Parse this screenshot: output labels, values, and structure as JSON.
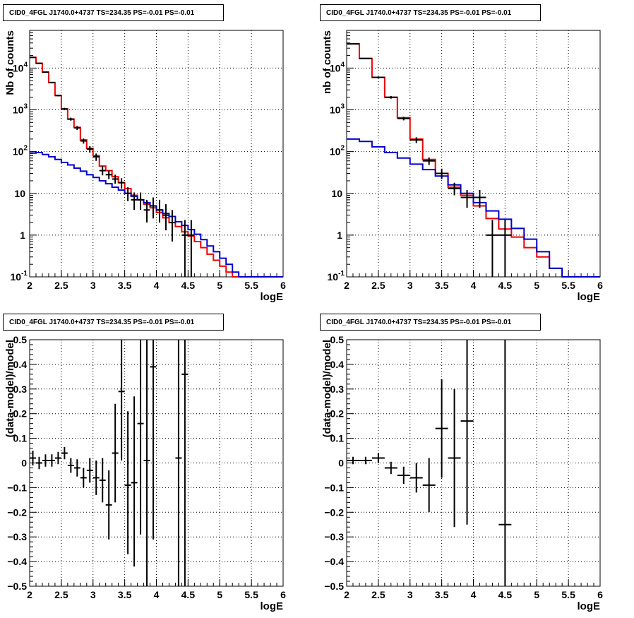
{
  "chart_data": [
    {
      "type": "histogram-line",
      "title": "CID0_4FGL J1740.0+4737 TS=234.35 PS=-0.01 PS=-0.01",
      "xlabel": "logE",
      "ylabel": "Nb of counts",
      "xlim": [
        2,
        6
      ],
      "ylim": [
        0.1,
        80000
      ],
      "yscale": "log",
      "grid": true,
      "x_ticks": [
        "2",
        "2.5",
        "3",
        "3.5",
        "4",
        "4.5",
        "5",
        "5.5",
        "6"
      ],
      "y_ticks": [
        "10^-1",
        "1",
        "10",
        "10^2",
        "10^3",
        "10^4"
      ],
      "bin_edges": [
        2.0,
        2.1,
        2.2,
        2.3,
        2.4,
        2.5,
        2.6,
        2.7,
        2.8,
        2.9,
        3.0,
        3.1,
        3.2,
        3.3,
        3.4,
        3.5,
        3.6,
        3.7,
        3.8,
        3.9,
        4.0,
        4.1,
        4.2,
        4.3,
        4.4,
        4.5,
        4.6,
        4.7,
        4.8,
        4.9,
        5.0,
        5.1,
        5.2,
        5.3,
        5.4,
        5.5,
        5.6,
        5.7,
        5.8,
        5.9,
        6.0
      ],
      "series": [
        {
          "color": "#ee0000",
          "values": [
            18000,
            13000,
            8000,
            4500,
            2200,
            1050,
            600,
            380,
            190,
            120,
            80,
            45,
            35,
            25,
            18,
            13,
            9,
            7,
            5.5,
            4.5,
            3.5,
            2.6,
            2.0,
            1.6,
            1.2,
            0.95,
            0.7,
            0.5,
            0.35,
            0.25,
            0.18,
            0.13,
            0.1,
            0.1,
            0.1,
            0.1,
            0.1,
            0.1,
            0.1,
            0.1
          ]
        },
        {
          "color": "#0000cc",
          "values": [
            92,
            95,
            85,
            75,
            65,
            55,
            48,
            40,
            34,
            28,
            24,
            20,
            17,
            14,
            12,
            10,
            8.5,
            7,
            6,
            5,
            4,
            3.3,
            2.8,
            2.1,
            1.7,
            1.35,
            1.05,
            0.78,
            0.55,
            0.4,
            0.28,
            0.2,
            0.13,
            0.1,
            0.1,
            0.1,
            0.1,
            0.1,
            0.1,
            0.1
          ]
        }
      ],
      "data_points": [
        {
          "x": 2.05,
          "y": 18000,
          "elo": 400,
          "ehi": 400
        },
        {
          "x": 2.15,
          "y": 13000,
          "elo": 300,
          "ehi": 300
        },
        {
          "x": 2.25,
          "y": 8000,
          "elo": 200,
          "ehi": 200
        },
        {
          "x": 2.35,
          "y": 4500,
          "elo": 150,
          "ehi": 150
        },
        {
          "x": 2.45,
          "y": 2200,
          "elo": 100,
          "ehi": 100
        },
        {
          "x": 2.55,
          "y": 1050,
          "elo": 70,
          "ehi": 70
        },
        {
          "x": 2.65,
          "y": 600,
          "elo": 50,
          "ehi": 50
        },
        {
          "x": 2.75,
          "y": 370,
          "elo": 40,
          "ehi": 40
        },
        {
          "x": 2.85,
          "y": 180,
          "elo": 25,
          "ehi": 25
        },
        {
          "x": 2.95,
          "y": 115,
          "elo": 20,
          "ehi": 20
        },
        {
          "x": 3.05,
          "y": 75,
          "elo": 15,
          "ehi": 15
        },
        {
          "x": 3.15,
          "y": 35,
          "elo": 8,
          "ehi": 10
        },
        {
          "x": 3.25,
          "y": 28,
          "elo": 6,
          "ehi": 7
        },
        {
          "x": 3.35,
          "y": 22,
          "elo": 5,
          "ehi": 6
        },
        {
          "x": 3.45,
          "y": 18,
          "elo": 5,
          "ehi": 5
        },
        {
          "x": 3.55,
          "y": 10,
          "elo": 3.5,
          "ehi": 4
        },
        {
          "x": 3.65,
          "y": 7,
          "elo": 3,
          "ehi": 3.5
        },
        {
          "x": 3.75,
          "y": 7,
          "elo": 3,
          "ehi": 3.5
        },
        {
          "x": 3.85,
          "y": 4,
          "elo": 2,
          "ehi": 3
        },
        {
          "x": 3.95,
          "y": 5,
          "elo": 2.5,
          "ehi": 3
        },
        {
          "x": 4.05,
          "y": 4,
          "elo": 2,
          "ehi": 3
        },
        {
          "x": 4.15,
          "y": 3,
          "elo": 1.7,
          "ehi": 2.5
        },
        {
          "x": 4.25,
          "y": 2,
          "elo": 1.3,
          "ehi": 2
        },
        {
          "x": 4.45,
          "y": 1,
          "elo": 0.95,
          "ehi": 1.3
        },
        {
          "x": 4.55,
          "y": 1,
          "elo": 0.95,
          "ehi": 1.3
        }
      ]
    },
    {
      "type": "histogram-line",
      "title": "CID0_4FGL J1740.0+4737 TS=234.35 PS=-0.01 PS=-0.01",
      "xlabel": "logE",
      "ylabel": "nb of counts",
      "xlim": [
        2,
        6
      ],
      "ylim": [
        0.1,
        80000
      ],
      "yscale": "log",
      "grid": true,
      "x_ticks": [
        "2",
        "2.5",
        "3",
        "3.5",
        "4",
        "4.5",
        "5",
        "5.5",
        "6"
      ],
      "y_ticks": [
        "10^-1",
        "1",
        "10",
        "10^2",
        "10^3",
        "10^4"
      ],
      "bin_edges": [
        2.0,
        2.2,
        2.4,
        2.6,
        2.8,
        3.0,
        3.2,
        3.4,
        3.6,
        3.8,
        4.0,
        4.2,
        4.4,
        4.6,
        4.8,
        5.0,
        5.2,
        5.4,
        5.6,
        5.8,
        6.0
      ],
      "series": [
        {
          "color": "#ee0000",
          "values": [
            38000,
            17000,
            6000,
            2000,
            650,
            200,
            65,
            30,
            14,
            9,
            5,
            2.5,
            1.4,
            0.9,
            0.5,
            0.3,
            0.16,
            0.1,
            0.1,
            0.1
          ]
        },
        {
          "color": "#0000cc",
          "values": [
            200,
            175,
            130,
            95,
            70,
            50,
            37,
            26,
            16,
            10,
            6,
            3.8,
            2.4,
            1.45,
            0.8,
            0.4,
            0.16,
            0.1,
            0.1,
            0.1
          ]
        }
      ],
      "data_points": [
        {
          "x": 2.1,
          "y": 38000,
          "elo": 800,
          "ehi": 800
        },
        {
          "x": 2.3,
          "y": 17000,
          "elo": 500,
          "ehi": 500
        },
        {
          "x": 2.5,
          "y": 6000,
          "elo": 300,
          "ehi": 300
        },
        {
          "x": 2.7,
          "y": 2000,
          "elo": 150,
          "ehi": 150
        },
        {
          "x": 2.9,
          "y": 620,
          "elo": 60,
          "ehi": 60
        },
        {
          "x": 3.1,
          "y": 190,
          "elo": 30,
          "ehi": 30
        },
        {
          "x": 3.3,
          "y": 60,
          "elo": 12,
          "ehi": 12
        },
        {
          "x": 3.5,
          "y": 30,
          "elo": 8,
          "ehi": 9
        },
        {
          "x": 3.7,
          "y": 13,
          "elo": 4,
          "ehi": 5
        },
        {
          "x": 3.9,
          "y": 8,
          "elo": 3.5,
          "ehi": 4
        },
        {
          "x": 4.1,
          "y": 8,
          "elo": 3.5,
          "ehi": 4
        },
        {
          "x": 4.3,
          "y": 1,
          "elo": 0.95,
          "ehi": 1.3
        },
        {
          "x": 4.5,
          "y": 1,
          "elo": 0.95,
          "ehi": 1.3
        }
      ]
    },
    {
      "type": "scatter-errorbar",
      "title": "CID0_4FGL J1740.0+4737 TS=234.35 PS=-0.01 PS=-0.01",
      "xlabel": "logE",
      "ylabel": "(data-model)/model",
      "xlim": [
        2,
        6
      ],
      "ylim": [
        -0.5,
        0.5
      ],
      "grid": true,
      "x_ticks": [
        "2",
        "2.5",
        "3",
        "3.5",
        "4",
        "4.5",
        "5",
        "5.5",
        "6"
      ],
      "y_ticks": [
        "−0.5",
        "−0.4",
        "−0.3",
        "−0.2",
        "−0.1",
        "0",
        "0.1",
        "0.2",
        "0.3",
        "0.4",
        "0.5"
      ],
      "bin_half_width": 0.05,
      "points": [
        {
          "x": 2.05,
          "y": 0.02,
          "elo": 0.03,
          "ehi": 0.03
        },
        {
          "x": 2.15,
          "y": 0.0,
          "elo": 0.025,
          "ehi": 0.025
        },
        {
          "x": 2.25,
          "y": 0.01,
          "elo": 0.025,
          "ehi": 0.025
        },
        {
          "x": 2.35,
          "y": 0.01,
          "elo": 0.025,
          "ehi": 0.025
        },
        {
          "x": 2.45,
          "y": 0.02,
          "elo": 0.025,
          "ehi": 0.025
        },
        {
          "x": 2.55,
          "y": 0.04,
          "elo": 0.025,
          "ehi": 0.025
        },
        {
          "x": 2.65,
          "y": -0.01,
          "elo": 0.03,
          "ehi": 0.03
        },
        {
          "x": 2.75,
          "y": -0.02,
          "elo": 0.035,
          "ehi": 0.035
        },
        {
          "x": 2.85,
          "y": -0.06,
          "elo": 0.04,
          "ehi": 0.04
        },
        {
          "x": 2.95,
          "y": -0.03,
          "elo": 0.05,
          "ehi": 0.05
        },
        {
          "x": 3.05,
          "y": -0.06,
          "elo": 0.07,
          "ehi": 0.07
        },
        {
          "x": 3.15,
          "y": -0.07,
          "elo": 0.09,
          "ehi": 0.09
        },
        {
          "x": 3.25,
          "y": -0.17,
          "elo": 0.14,
          "ehi": 0.14
        },
        {
          "x": 3.35,
          "y": 0.04,
          "elo": 0.2,
          "ehi": 0.2
        },
        {
          "x": 3.45,
          "y": 0.29,
          "elo": 0.28,
          "ehi": 0.3
        },
        {
          "x": 3.55,
          "y": -0.09,
          "elo": 0.28,
          "ehi": 0.3
        },
        {
          "x": 3.65,
          "y": -0.08,
          "elo": 0.34,
          "ehi": 0.35
        },
        {
          "x": 3.75,
          "y": 0.16,
          "elo": 0.45,
          "ehi": 0.45
        },
        {
          "x": 3.85,
          "y": 0.01,
          "elo": 0.55,
          "ehi": 0.55
        },
        {
          "x": 3.95,
          "y": 0.39,
          "elo": 0.7,
          "ehi": 0.7
        },
        {
          "x": 4.35,
          "y": 0.02,
          "elo": 0.9,
          "ehi": 0.9
        },
        {
          "x": 4.45,
          "y": 0.36,
          "elo": 0.9,
          "ehi": 0.9
        }
      ]
    },
    {
      "type": "scatter-errorbar",
      "title": "CID0_4FGL J1740.0+4737 TS=234.35 PS=-0.01 PS=-0.01",
      "xlabel": "logE",
      "ylabel": "(data-model)/model",
      "xlim": [
        2,
        6
      ],
      "ylim": [
        -0.5,
        0.5
      ],
      "grid": true,
      "x_ticks": [
        "2",
        "2.5",
        "3",
        "3.5",
        "4",
        "4.5",
        "5",
        "5.5",
        "6"
      ],
      "y_ticks": [
        "−0.5",
        "−0.4",
        "−0.3",
        "−0.2",
        "−0.1",
        "0",
        "0.1",
        "0.2",
        "0.3",
        "0.4",
        "0.5"
      ],
      "bin_half_width": 0.1,
      "points": [
        {
          "x": 2.1,
          "y": 0.01,
          "elo": 0.015,
          "ehi": 0.015
        },
        {
          "x": 2.3,
          "y": 0.01,
          "elo": 0.015,
          "ehi": 0.015
        },
        {
          "x": 2.5,
          "y": 0.02,
          "elo": 0.02,
          "ehi": 0.02
        },
        {
          "x": 2.7,
          "y": -0.02,
          "elo": 0.025,
          "ehi": 0.025
        },
        {
          "x": 2.9,
          "y": -0.05,
          "elo": 0.035,
          "ehi": 0.035
        },
        {
          "x": 3.1,
          "y": -0.06,
          "elo": 0.06,
          "ehi": 0.06
        },
        {
          "x": 3.3,
          "y": -0.09,
          "elo": 0.11,
          "ehi": 0.11
        },
        {
          "x": 3.5,
          "y": 0.14,
          "elo": 0.2,
          "ehi": 0.2
        },
        {
          "x": 3.7,
          "y": 0.02,
          "elo": 0.28,
          "ehi": 0.28
        },
        {
          "x": 3.9,
          "y": 0.17,
          "elo": 0.42,
          "ehi": 0.42
        },
        {
          "x": 4.5,
          "y": -0.25,
          "elo": 0.9,
          "ehi": 0.9
        }
      ]
    }
  ]
}
